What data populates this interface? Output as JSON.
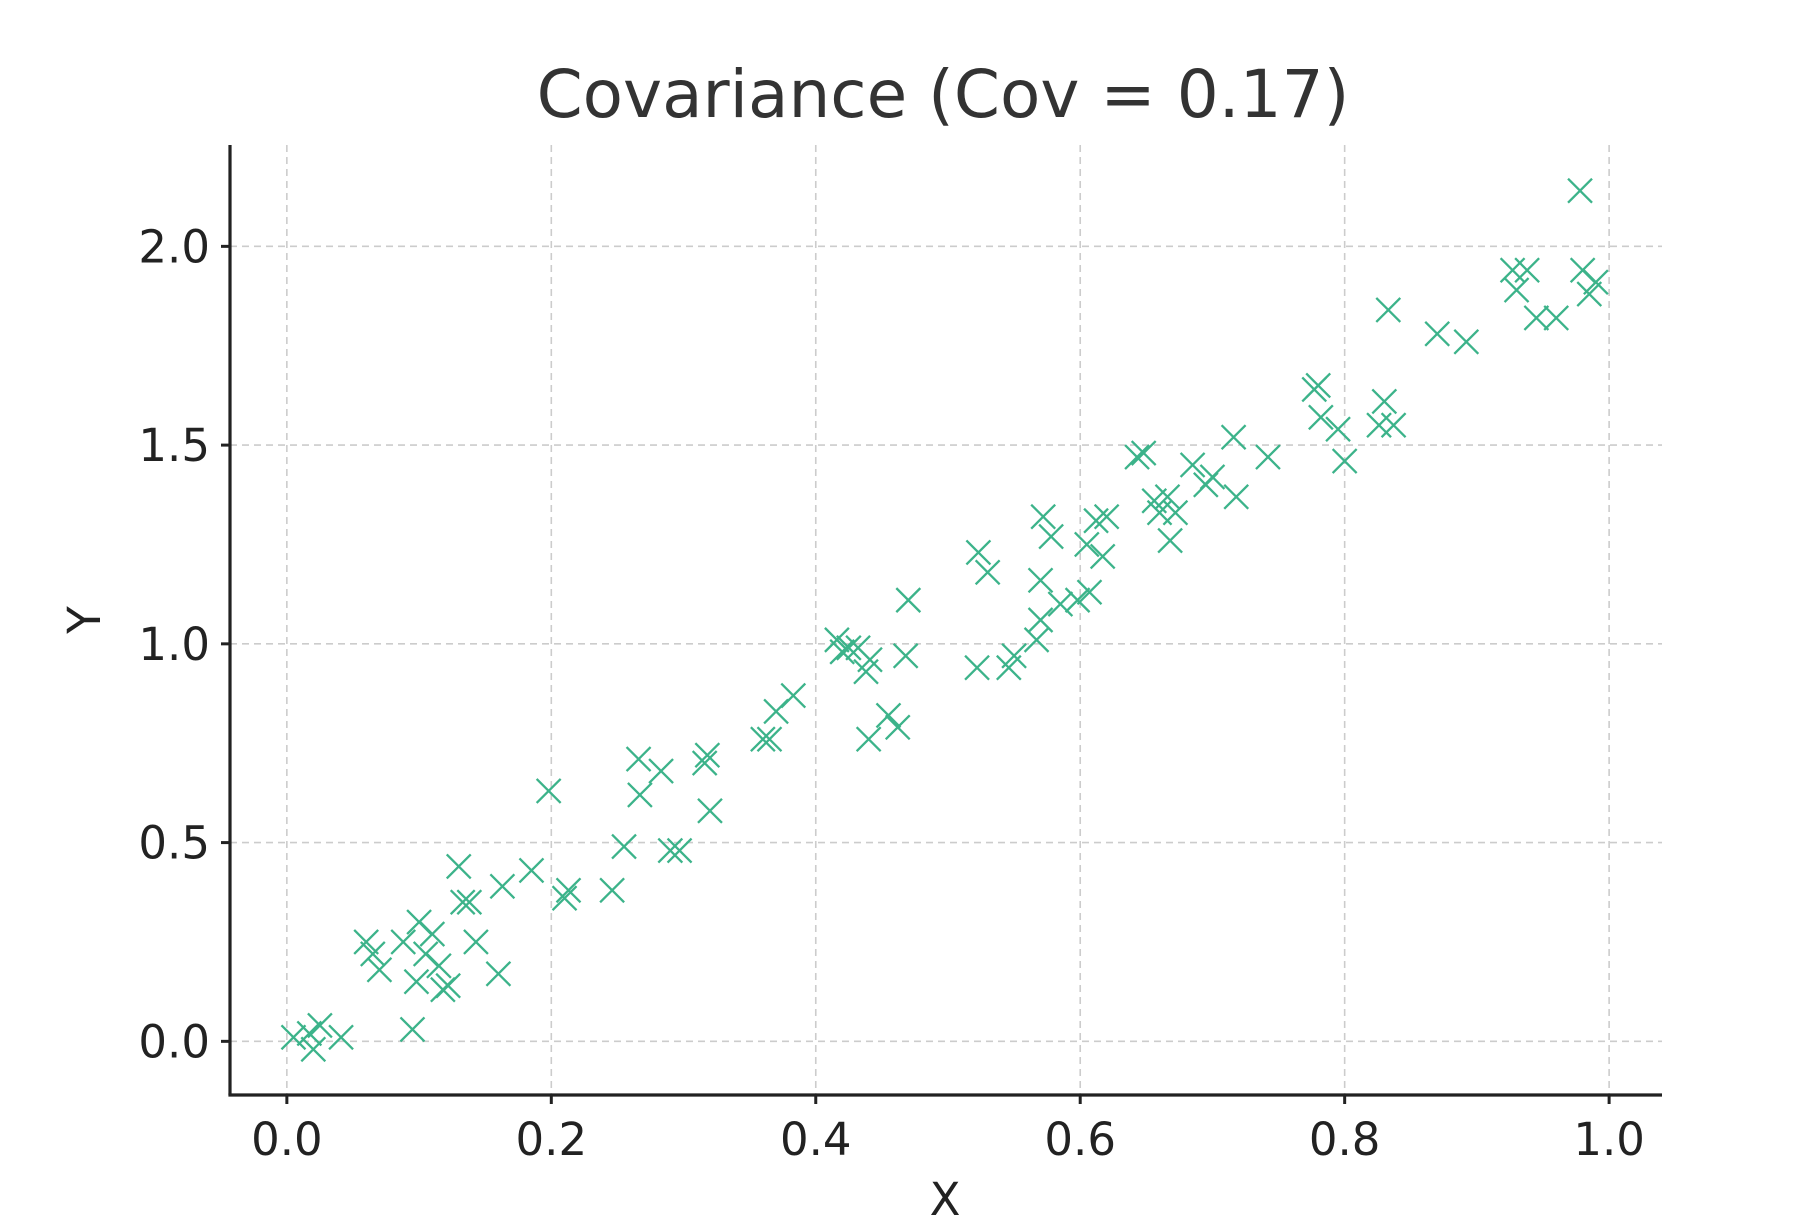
{
  "chart_data": {
    "type": "scatter",
    "title": "Covariance (Cov = 0.17)",
    "xlabel": "X",
    "ylabel": "Y",
    "xlim": [
      -0.043,
      1.04
    ],
    "ylim": [
      -0.135,
      2.255
    ],
    "xticks": [
      0.0,
      0.2,
      0.4,
      0.6,
      0.8,
      1.0
    ],
    "xtick_labels": [
      "0.0",
      "0.2",
      "0.4",
      "0.6",
      "0.8",
      "1.0"
    ],
    "yticks": [
      0.0,
      0.5,
      1.0,
      1.5,
      2.0
    ],
    "ytick_labels": [
      "0.0",
      "0.5",
      "1.0",
      "1.5",
      "2.0"
    ],
    "grid": true,
    "marker": "x",
    "color": "#3cb38a",
    "points": [
      [
        0.005,
        0.01
      ],
      [
        0.017,
        0.02
      ],
      [
        0.02,
        -0.02
      ],
      [
        0.025,
        0.04
      ],
      [
        0.041,
        0.01
      ],
      [
        0.06,
        0.25
      ],
      [
        0.065,
        0.22
      ],
      [
        0.07,
        0.18
      ],
      [
        0.088,
        0.25
      ],
      [
        0.095,
        0.03
      ],
      [
        0.098,
        0.15
      ],
      [
        0.1,
        0.3
      ],
      [
        0.105,
        0.22
      ],
      [
        0.11,
        0.27
      ],
      [
        0.115,
        0.19
      ],
      [
        0.118,
        0.13
      ],
      [
        0.122,
        0.14
      ],
      [
        0.13,
        0.44
      ],
      [
        0.133,
        0.35
      ],
      [
        0.138,
        0.35
      ],
      [
        0.143,
        0.25
      ],
      [
        0.16,
        0.17
      ],
      [
        0.163,
        0.39
      ],
      [
        0.185,
        0.43
      ],
      [
        0.198,
        0.63
      ],
      [
        0.21,
        0.36
      ],
      [
        0.213,
        0.38
      ],
      [
        0.246,
        0.38
      ],
      [
        0.255,
        0.49
      ],
      [
        0.266,
        0.71
      ],
      [
        0.267,
        0.62
      ],
      [
        0.283,
        0.68
      ],
      [
        0.29,
        0.48
      ],
      [
        0.297,
        0.48
      ],
      [
        0.316,
        0.7
      ],
      [
        0.318,
        0.72
      ],
      [
        0.32,
        0.58
      ],
      [
        0.36,
        0.76
      ],
      [
        0.365,
        0.76
      ],
      [
        0.37,
        0.83
      ],
      [
        0.383,
        0.87
      ],
      [
        0.416,
        1.01
      ],
      [
        0.42,
        0.98
      ],
      [
        0.425,
        0.99
      ],
      [
        0.432,
        0.99
      ],
      [
        0.438,
        0.93
      ],
      [
        0.44,
        0.76
      ],
      [
        0.441,
        0.96
      ],
      [
        0.455,
        0.82
      ],
      [
        0.462,
        0.79
      ],
      [
        0.468,
        0.97
      ],
      [
        0.47,
        1.11
      ],
      [
        0.522,
        0.94
      ],
      [
        0.523,
        1.23
      ],
      [
        0.53,
        1.18
      ],
      [
        0.546,
        0.94
      ],
      [
        0.55,
        0.97
      ],
      [
        0.567,
        1.01
      ],
      [
        0.57,
        1.06
      ],
      [
        0.57,
        1.16
      ],
      [
        0.572,
        1.32
      ],
      [
        0.578,
        1.27
      ],
      [
        0.585,
        1.1
      ],
      [
        0.598,
        1.11
      ],
      [
        0.605,
        1.25
      ],
      [
        0.607,
        1.13
      ],
      [
        0.612,
        1.31
      ],
      [
        0.617,
        1.22
      ],
      [
        0.62,
        1.32
      ],
      [
        0.643,
        1.47
      ],
      [
        0.648,
        1.48
      ],
      [
        0.656,
        1.36
      ],
      [
        0.66,
        1.33
      ],
      [
        0.666,
        1.37
      ],
      [
        0.668,
        1.26
      ],
      [
        0.672,
        1.33
      ],
      [
        0.685,
        1.45
      ],
      [
        0.695,
        1.4
      ],
      [
        0.7,
        1.42
      ],
      [
        0.716,
        1.52
      ],
      [
        0.718,
        1.37
      ],
      [
        0.742,
        1.47
      ],
      [
        0.777,
        1.64
      ],
      [
        0.78,
        1.65
      ],
      [
        0.782,
        1.57
      ],
      [
        0.795,
        1.54
      ],
      [
        0.8,
        1.46
      ],
      [
        0.826,
        1.55
      ],
      [
        0.83,
        1.61
      ],
      [
        0.833,
        1.84
      ],
      [
        0.837,
        1.55
      ],
      [
        0.87,
        1.78
      ],
      [
        0.892,
        1.76
      ],
      [
        0.927,
        1.94
      ],
      [
        0.93,
        1.89
      ],
      [
        0.938,
        1.94
      ],
      [
        0.945,
        1.82
      ],
      [
        0.96,
        1.82
      ],
      [
        0.978,
        2.14
      ],
      [
        0.98,
        1.94
      ],
      [
        0.985,
        1.88
      ],
      [
        0.99,
        1.91
      ]
    ]
  }
}
